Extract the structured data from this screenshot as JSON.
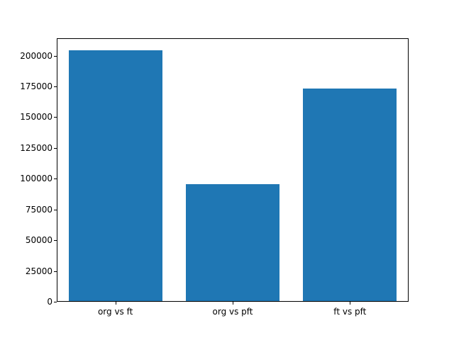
{
  "chart_data": {
    "type": "bar",
    "categories": [
      "org vs ft",
      "org vs pft",
      "ft vs pft"
    ],
    "values": [
      204000,
      95000,
      173000
    ],
    "title": "",
    "xlabel": "",
    "ylabel": "",
    "ylim": [
      0,
      214200
    ],
    "yticks": [
      0,
      25000,
      50000,
      75000,
      100000,
      125000,
      150000,
      175000,
      200000
    ],
    "bar_color": "#1f77b4",
    "bar_width_fraction": 0.8,
    "grid": false,
    "legend": false
  }
}
